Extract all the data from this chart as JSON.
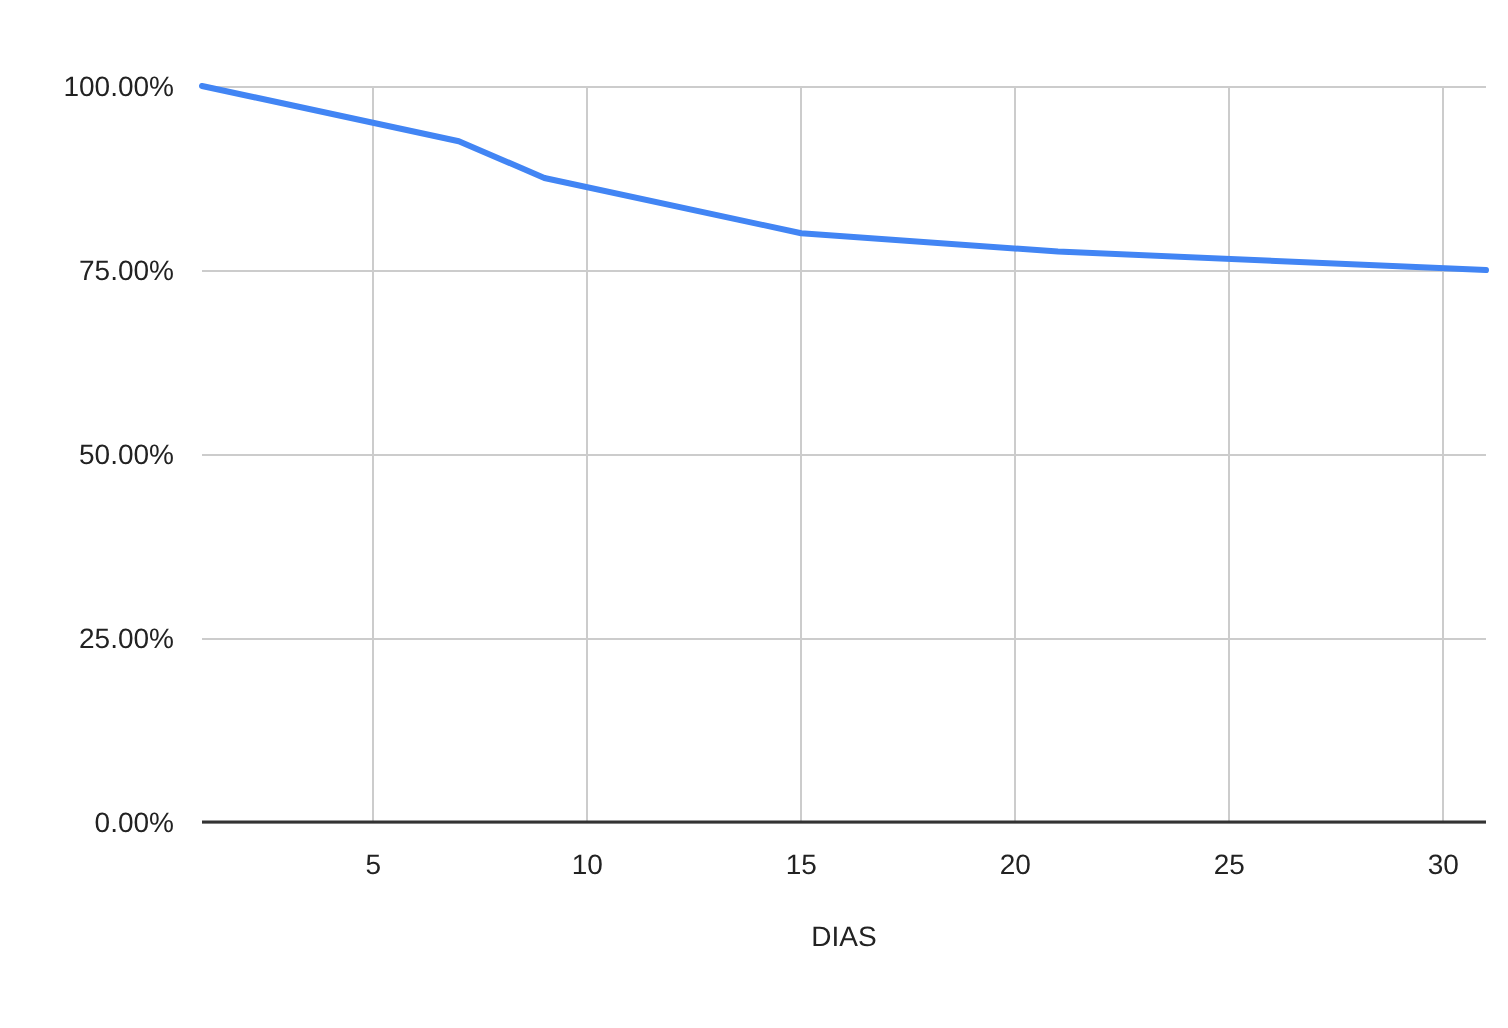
{
  "chart_data": {
    "type": "line",
    "xlabel": "DIAS",
    "x": [
      1,
      7,
      9,
      15,
      21,
      31
    ],
    "series": [
      {
        "color": "#4285f4",
        "values": [
          100,
          92.5,
          87.5,
          80,
          77.5,
          75
        ]
      }
    ],
    "xlim": [
      1,
      31
    ],
    "xticks": [
      5,
      10,
      15,
      20,
      25,
      30
    ],
    "ylim": [
      0,
      100
    ],
    "yticks": [
      {
        "value": 0,
        "label": "0.00%"
      },
      {
        "value": 25,
        "label": "25.00%"
      },
      {
        "value": 50,
        "label": "50.00%"
      },
      {
        "value": 75,
        "label": "75.00%"
      },
      {
        "value": 100,
        "label": "100.00%"
      }
    ],
    "grid": true,
    "marker": "none",
    "line_style": "solid"
  }
}
